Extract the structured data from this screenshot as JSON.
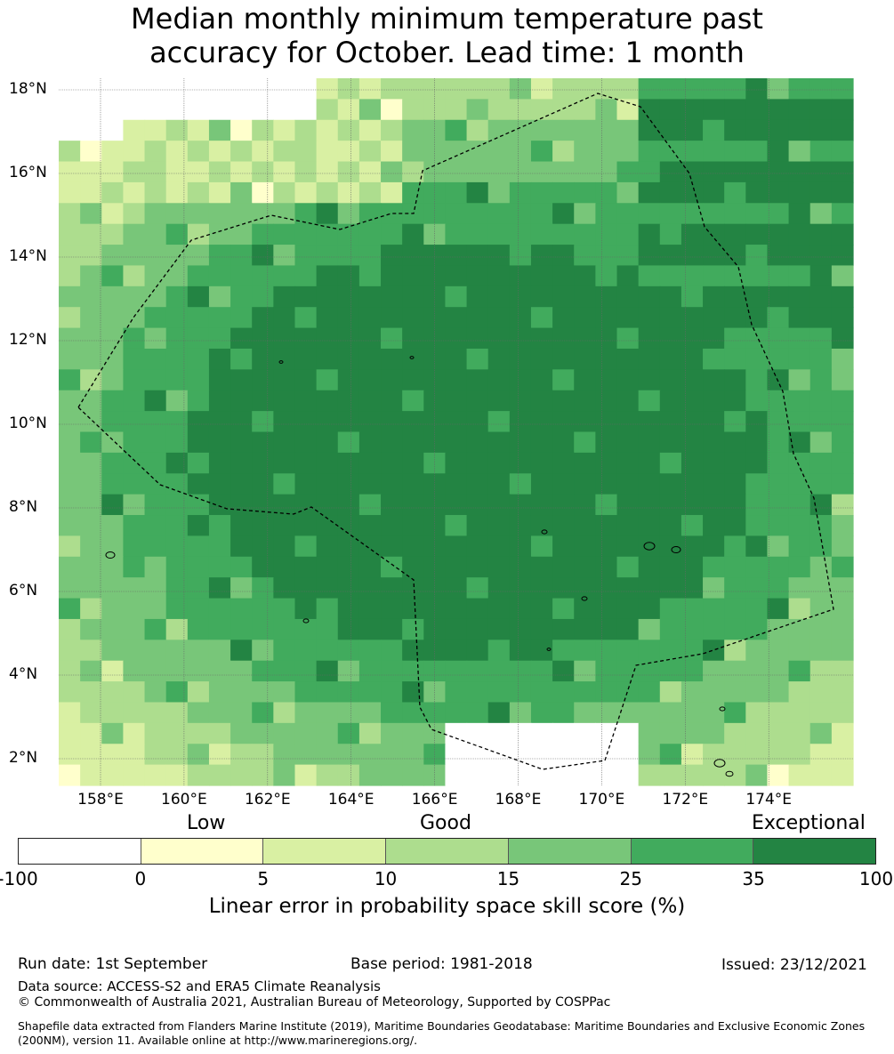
{
  "title_line1": "Median monthly minimum temperature past",
  "title_line2": "accuracy for October. Lead time: 1 month",
  "lat_labels": [
    "18°N",
    "16°N",
    "14°N",
    "12°N",
    "10°N",
    "8°N",
    "6°N",
    "4°N",
    "2°N"
  ],
  "lon_labels": [
    "158°E",
    "160°E",
    "162°E",
    "164°E",
    "166°E",
    "168°E",
    "170°E",
    "172°E",
    "174°E"
  ],
  "category_labels": {
    "low": "Low",
    "good": "Good",
    "exceptional": "Exceptional"
  },
  "colorbar": {
    "ticks": [
      "-100",
      "0",
      "5",
      "10",
      "15",
      "25",
      "35",
      "100"
    ],
    "colors": [
      "#ffffff",
      "#ffffcc",
      "#d9f0a3",
      "#addd8e",
      "#78c679",
      "#41ab5d",
      "#238443"
    ],
    "title": "Linear error in probability space skill score (%)"
  },
  "footer": {
    "run_date": "Run date: 1st September",
    "base_period": "Base period: 1981-2018",
    "issued": "Issued: 23/12/2021",
    "data_source": "Data source: ACCESS-S2 and ERA5 Climate Reanalysis",
    "copyright": "© Commonwealth of Australia 2021, Australian Bureau of Meteorology, Supported by COSPPac",
    "shapefile_note": "Shapefile data extracted from Flanders Marine Institute (2019), Maritime Boundaries Geodatabase: Maritime Boundaries and Exclusive Economic Zones (200NM), version 11. Available online at http://www.marineregions.org/."
  },
  "map": {
    "lon_range": [
      157.0,
      176.0
    ],
    "lat_range": [
      1.5,
      18.3
    ],
    "grid_step": 0.833,
    "skill_grid_rows_north_to_south": [
      "..0...............",
      "....333....3332333",
      "..2222.....",
      "..0"
    ]
  }
}
